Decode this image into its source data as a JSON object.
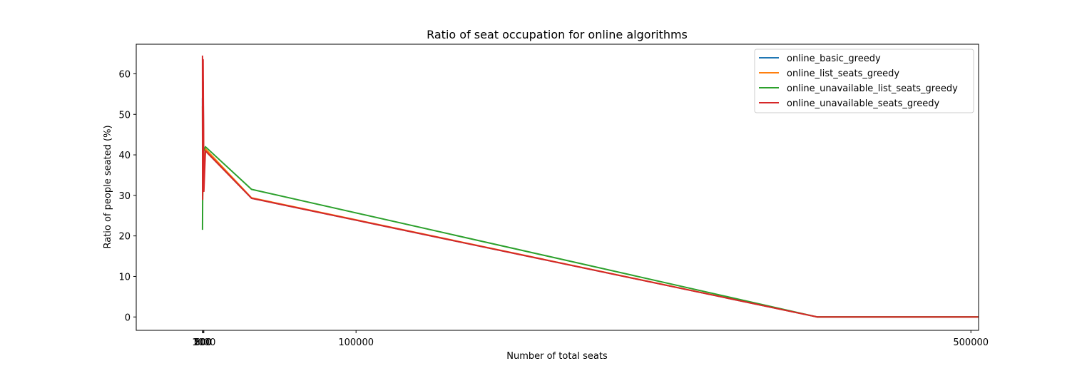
{
  "chart_data": {
    "type": "line",
    "title": "Ratio of seat occupation for online algorithms",
    "xlabel": "Number of total seats",
    "ylabel": "Ratio of people seated (%)",
    "xlim": [
      -43000,
      505000
    ],
    "ylim": [
      -3.3,
      67.3
    ],
    "xticks": [
      {
        "value": 100,
        "label": "100"
      },
      {
        "value": 200,
        "label": "200"
      },
      {
        "value": 500,
        "label": "500"
      },
      {
        "value": 1000,
        "label": "1000"
      },
      {
        "value": 100000,
        "label": "100000"
      },
      {
        "value": 500000,
        "label": "500000"
      }
    ],
    "yticks": [
      0,
      10,
      20,
      30,
      40,
      50,
      60
    ],
    "grid": false,
    "legend_position": "top-right",
    "series": [
      {
        "name": "online_basic_greedy",
        "color": "#1f77b4",
        "x": [
          100,
          200,
          500,
          1000,
          2000,
          32000,
          400000,
          505000
        ],
        "y": [
          54,
          31,
          58,
          35,
          41,
          29.3,
          0,
          0
        ]
      },
      {
        "name": "online_list_seats_greedy",
        "color": "#ff7f0e",
        "x": [
          100,
          200,
          500,
          1000,
          2000,
          32000,
          400000,
          505000
        ],
        "y": [
          52,
          30,
          56,
          34,
          41.5,
          29.4,
          0,
          0
        ]
      },
      {
        "name": "online_unavailable_list_seats_greedy",
        "color": "#2ca02c",
        "x": [
          100,
          200,
          500,
          1000,
          2000,
          32000,
          400000,
          505000
        ],
        "y": [
          21.5,
          28.5,
          42,
          41,
          42,
          31.5,
          0,
          0
        ]
      },
      {
        "name": "online_unavailable_seats_greedy",
        "color": "#d62728",
        "x": [
          100,
          200,
          500,
          1000,
          2000,
          32000,
          400000,
          505000
        ],
        "y": [
          64.5,
          29,
          63.5,
          31,
          41,
          29.3,
          0,
          0
        ]
      }
    ]
  }
}
